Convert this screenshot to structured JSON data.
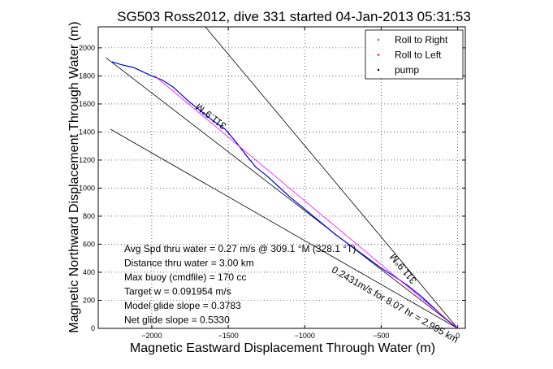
{
  "figure": {
    "title": "SG503 Ross2012, dive 331 started 04-Jan-2013 05:31:53"
  },
  "chart_data": {
    "type": "line",
    "title": "SG503 Ross2012, dive 331 started 04-Jan-2013 05:31:53",
    "xlabel": "Magnetic Eastward Displacement Through Water (m)",
    "ylabel": "Magnetic Northward Displacement Through Water (m)",
    "xlim": [
      -2350,
      50
    ],
    "ylim": [
      0,
      2150
    ],
    "xticks": [
      -2000,
      -1500,
      -1000,
      -500,
      0
    ],
    "yticks": [
      0,
      200,
      400,
      600,
      800,
      1000,
      1200,
      1400,
      1600,
      1800,
      2000
    ],
    "grid": true,
    "legend": {
      "placement": "top-right",
      "entries": [
        {
          "label": "Roll to Right",
          "color": "#00cc00",
          "marker": "dot"
        },
        {
          "label": "Roll to Left",
          "color": "#ff0000",
          "marker": "dot"
        },
        {
          "label": "pump",
          "color": "#000000",
          "marker": "dot"
        }
      ]
    },
    "series": [
      {
        "color": "#0000dd",
        "x": [
          0,
          -80,
          -160,
          -240,
          -320,
          -400,
          -500,
          -600,
          -700,
          -800,
          -900,
          -1000,
          -1100,
          -1180,
          -1250,
          -1320,
          -1380,
          -1450,
          -1520,
          -1600,
          -1680,
          -1760,
          -1800,
          -1860,
          -1930,
          -2000,
          -2060,
          -2120,
          -2200,
          -2260
        ],
        "y": [
          0,
          70,
          150,
          230,
          300,
          360,
          430,
          510,
          590,
          670,
          760,
          850,
          940,
          1020,
          1090,
          1150,
          1230,
          1330,
          1420,
          1480,
          1550,
          1620,
          1660,
          1720,
          1770,
          1800,
          1830,
          1860,
          1880,
          1900
        ]
      },
      {
        "color": "#ff00ff",
        "x": [
          0,
          -1980
        ],
        "y": [
          0,
          1800
        ]
      }
    ],
    "reference_lines": [
      {
        "label": "311.9°M",
        "color": "#000000",
        "x": [
          0,
          -1650
        ],
        "y": [
          0,
          2150
        ]
      },
      {
        "label": "0.2431m/s for 8.07 hr = 2.995 km",
        "color": "#000000",
        "x": [
          0,
          -2270
        ],
        "y": [
          0,
          1420
        ]
      },
      {
        "label": "311.9°M",
        "color": "#000000",
        "x": [
          0,
          -2300
        ],
        "y": [
          0,
          1930
        ]
      }
    ],
    "annotations": [
      "Avg Spd thru water = 0.27 m/s @ 309.1 °M (328.1 °T)",
      "Distance thru water = 3.00 km",
      "Max buoy (cmdfile) = 170 cc",
      "Target w = 0.091954 m/s",
      "Model glide slope = 0.3783",
      "Net glide slope = 0.5330"
    ]
  },
  "colors": {
    "axis": "#000000",
    "grid": "#000000",
    "background": "#ffffff"
  }
}
